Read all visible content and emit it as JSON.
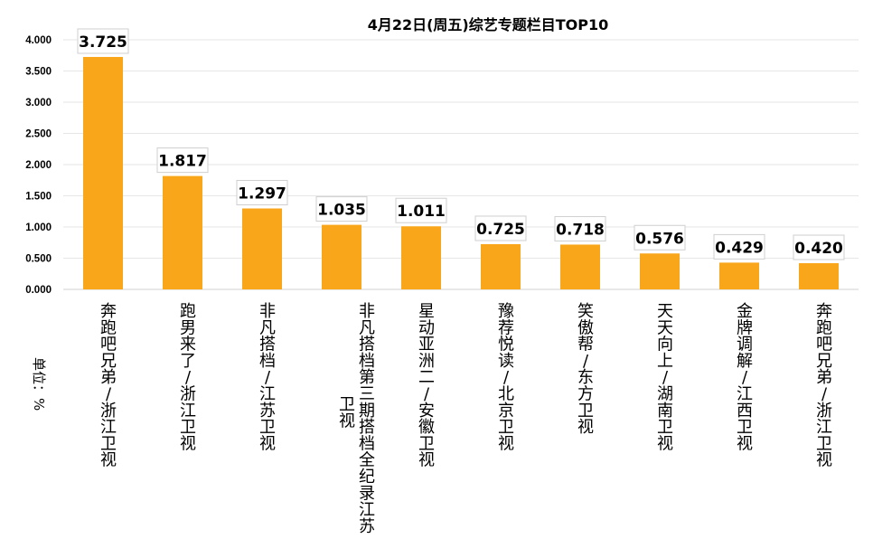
{
  "chart_data": {
    "type": "bar",
    "title": "4月22日(周五)综艺专题栏目TOP10",
    "unit_label": "单位：%",
    "categories": [
      "奔跑吧兄弟/浙江卫视",
      "跑男来了/浙江卫视",
      "非凡搭档/江苏卫视",
      "非凡搭档第三期搭档全纪录江苏卫视",
      "星动亚洲二/安徽卫视",
      "豫荐悦读/北京卫视",
      "笑傲帮/东方卫视",
      "天天向上/湖南卫视",
      "金牌调解/江西卫视",
      "奔跑吧兄弟/浙江卫视"
    ],
    "values": [
      3.725,
      1.817,
      1.297,
      1.035,
      1.011,
      0.725,
      0.718,
      0.576,
      0.429,
      0.42
    ],
    "value_labels": [
      "3.725",
      "1.817",
      "1.297",
      "1.035",
      "1.011",
      "0.725",
      "0.718",
      "0.576",
      "0.429",
      "0.420"
    ],
    "yticks": [
      "0.000",
      "0.500",
      "1.000",
      "1.500",
      "2.000",
      "2.500",
      "3.000",
      "3.500",
      "4.000"
    ],
    "ylim": [
      0,
      4
    ],
    "grid": true,
    "bar_color": "#F9A61A",
    "grid_color": "#E6E6E6"
  }
}
